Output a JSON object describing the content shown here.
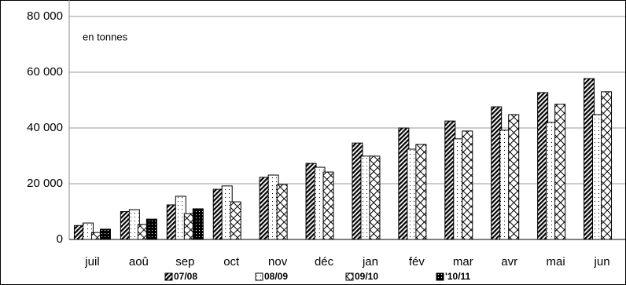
{
  "chart_data": {
    "type": "bar",
    "annotation": "en tonnes",
    "categories": [
      "juil",
      "aoû",
      "sep",
      "oct",
      "nov",
      "déc",
      "jan",
      "fév",
      "mar",
      "avr",
      "mai",
      "jun"
    ],
    "series": [
      {
        "name": "07/08",
        "color": "#000000",
        "pattern": "dense-hatch",
        "values": [
          5000,
          10000,
          12400,
          18000,
          22300,
          27300,
          34600,
          40000,
          42500,
          47600,
          52700,
          57700
        ]
      },
      {
        "name": "08/09",
        "color": "#000000",
        "pattern": "dots",
        "values": [
          5900,
          10700,
          15500,
          19200,
          23100,
          25900,
          29900,
          32400,
          36100,
          39200,
          42000,
          44800
        ]
      },
      {
        "name": "09/10",
        "color": "#000000",
        "pattern": "sparse-hatch",
        "values": [
          2500,
          5400,
          9300,
          13500,
          19700,
          24200,
          29900,
          34100,
          38900,
          44800,
          48500,
          53000
        ]
      },
      {
        "name": "'10/11",
        "color": "#000000",
        "pattern": "dark-dots",
        "values": [
          3700,
          7300,
          11000,
          null,
          null,
          null,
          null,
          null,
          null,
          null,
          null,
          null
        ]
      }
    ],
    "ylim": [
      0,
      80000
    ],
    "yticks": [
      {
        "value": 0,
        "label": "0"
      },
      {
        "value": 20000,
        "label": "20 000"
      },
      {
        "value": 40000,
        "label": "40 000"
      },
      {
        "value": 60000,
        "label": "60 000"
      },
      {
        "value": 80000,
        "label": "80 000"
      }
    ],
    "grid": true,
    "legend": "bottom"
  }
}
